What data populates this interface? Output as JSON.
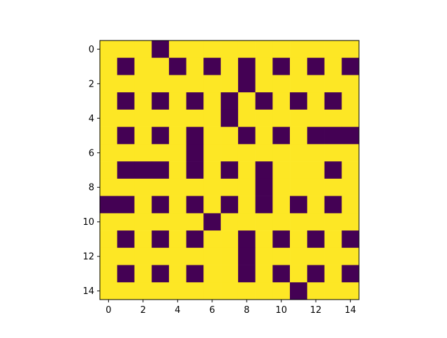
{
  "chart_data": {
    "type": "heatmap",
    "title": "",
    "xlabel": "",
    "ylabel": "",
    "colormap": "viridis",
    "colors": {
      "low": "#440154",
      "high": "#fde725"
    },
    "value_range": [
      0,
      1
    ],
    "xlim": [
      -0.5,
      14.5
    ],
    "ylim": [
      14.5,
      -0.5
    ],
    "x_ticks": [
      0,
      2,
      4,
      6,
      8,
      10,
      12,
      14
    ],
    "y_ticks": [
      0,
      2,
      4,
      6,
      8,
      10,
      12,
      14
    ],
    "grid": false,
    "legend": false,
    "rows": [
      "111011111111111",
      "101101010101010",
      "111111110111111",
      "101010101010101",
      "111111101111111",
      "101010110101000",
      "111110111111111",
      "100010101011101",
      "111111111011111",
      "001010101010101",
      "111111011111111",
      "101010110101010",
      "111111110111111",
      "101010110101010",
      "111111111110111"
    ]
  }
}
